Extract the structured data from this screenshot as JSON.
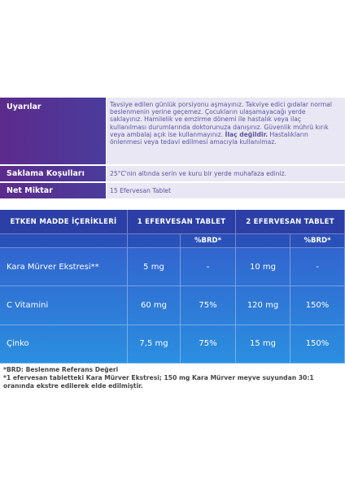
{
  "info": {
    "warnings": {
      "label": "Uyarılar",
      "text_before": "Tavsiye edilen günlük porsiyonu aşmayınız. Takviye edici gıdalar normal beslenmenin yerine geçemez. Çocukların ulaşamayacağı yerde saklayınız. Hamilelik ve emzirme dönemi ile hastalık veya ilaç kullanılması durumlarında doktorunuza danışınız. Güvenlik mührü kırık veya ambalaj açık ise kullanmayınız.",
      "bold": "İlaç değildir.",
      "text_after": "Hastalıkların önlenmesi veya tedavi edilmesi amacıyla kullanılmaz."
    },
    "storage": {
      "label": "Saklama Koşulları",
      "text": "25°C'nin altında serin ve kuru bir yerde muhafaza ediniz."
    },
    "amount": {
      "label": "Net Miktar",
      "text": "15 Efervesan Tablet"
    }
  },
  "table": {
    "headers": [
      "ETKEN MADDE İÇERİKLERİ",
      "1 EFERVESAN TABLET",
      "2 EFERVESAN TABLET"
    ],
    "subheaders": [
      "%BRD*",
      "%BRD*"
    ],
    "rows": [
      [
        "Kara Mürver Ekstresi**",
        "5 mg",
        "-",
        "10 mg",
        "-"
      ],
      [
        "C Vitamini",
        "60 mg",
        "75%",
        "120 mg",
        "150%"
      ],
      [
        "Çinko",
        "7,5 mg",
        "75%",
        "15 mg",
        "150%"
      ]
    ]
  },
  "footnotes": [
    "*BRD: Beslenme Referans Değeri",
    "*1 efervesan tabletteki Kara Mürver Ekstresi; 150 mg Kara Mürver meyve suyundan 30:1 oranında ekstre edilerek elde edilmiştir."
  ]
}
